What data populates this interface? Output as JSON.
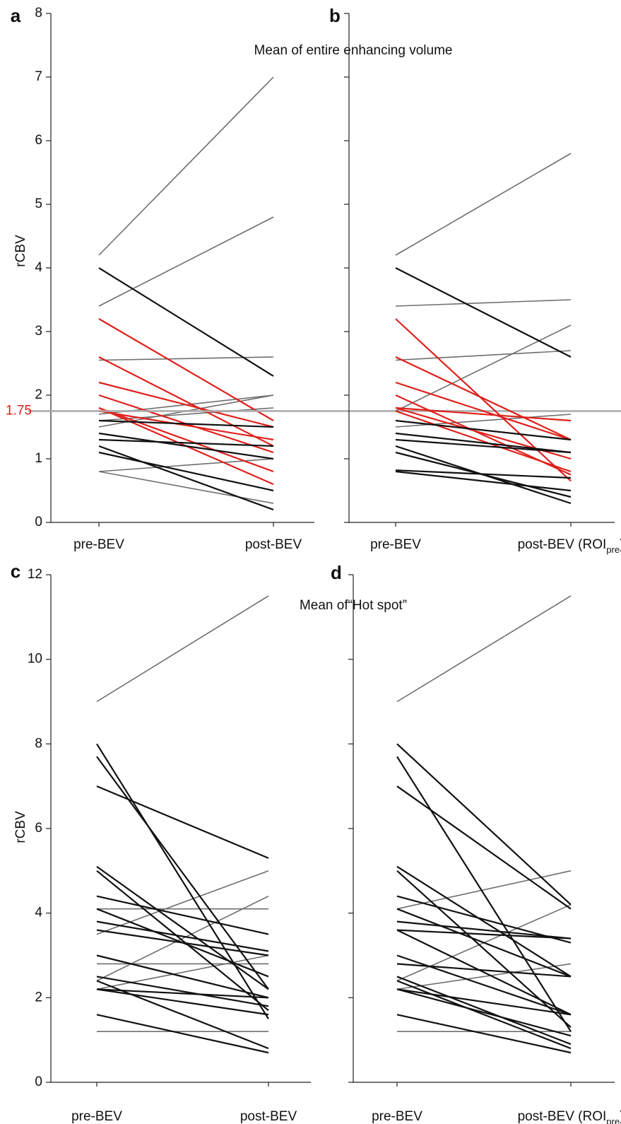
{
  "chart_data": [
    {
      "type": "slope",
      "panel": "a",
      "title": "Mean of entire enhancing volume",
      "ylabel": "rCBV",
      "categories": [
        "pre-BEV",
        "post-BEV"
      ],
      "ylim": [
        0,
        8
      ],
      "yticks": [
        0,
        1,
        2,
        3,
        4,
        5,
        6,
        7,
        8
      ],
      "tick_labels": true,
      "reference_line": {
        "value": 1.75,
        "label": "1.75",
        "color": "#e0201b"
      },
      "series": [
        {
          "color": "#6e6e6e",
          "values": [
            4.2,
            7.0
          ]
        },
        {
          "color": "#6e6e6e",
          "values": [
            3.4,
            4.8
          ]
        },
        {
          "color": "#6e6e6e",
          "values": [
            2.55,
            2.6
          ]
        },
        {
          "color": "#6e6e6e",
          "values": [
            1.7,
            2.0
          ]
        },
        {
          "color": "#6e6e6e",
          "values": [
            1.5,
            2.0
          ]
        },
        {
          "color": "#6e6e6e",
          "values": [
            1.6,
            1.8
          ]
        },
        {
          "color": "#6e6e6e",
          "values": [
            0.8,
            1.0
          ]
        },
        {
          "color": "#6e6e6e",
          "values": [
            0.8,
            0.3
          ]
        },
        {
          "color": "#111111",
          "values": [
            4.0,
            2.3
          ]
        },
        {
          "color": "#e0201b",
          "values": [
            3.2,
            1.6
          ]
        },
        {
          "color": "#e0201b",
          "values": [
            2.6,
            1.2
          ]
        },
        {
          "color": "#e0201b",
          "values": [
            2.2,
            1.5
          ]
        },
        {
          "color": "#e0201b",
          "values": [
            2.0,
            1.1
          ]
        },
        {
          "color": "#e0201b",
          "values": [
            1.8,
            0.8
          ]
        },
        {
          "color": "#e0201b",
          "values": [
            1.8,
            0.6
          ]
        },
        {
          "color": "#e0201b",
          "values": [
            1.75,
            1.3
          ]
        },
        {
          "color": "#111111",
          "values": [
            1.6,
            1.5
          ]
        },
        {
          "color": "#111111",
          "values": [
            1.4,
            1.0
          ]
        },
        {
          "color": "#111111",
          "values": [
            1.3,
            1.2
          ]
        },
        {
          "color": "#111111",
          "values": [
            1.2,
            0.2
          ]
        },
        {
          "color": "#111111",
          "values": [
            1.1,
            0.5
          ]
        }
      ]
    },
    {
      "type": "slope",
      "panel": "b",
      "categories": [
        "pre-BEV",
        [
          "post-BEV (ROI",
          "pre",
          ")"
        ]
      ],
      "ylim": [
        0,
        8
      ],
      "yticks": [
        0,
        1,
        2,
        3,
        4,
        5,
        6,
        7,
        8
      ],
      "tick_labels": false,
      "series": [
        {
          "color": "#6e6e6e",
          "values": [
            4.2,
            5.8
          ]
        },
        {
          "color": "#6e6e6e",
          "values": [
            3.4,
            3.5
          ]
        },
        {
          "color": "#6e6e6e",
          "values": [
            2.55,
            2.7
          ]
        },
        {
          "color": "#6e6e6e",
          "values": [
            1.75,
            3.1
          ]
        },
        {
          "color": "#6e6e6e",
          "values": [
            1.5,
            1.7
          ]
        },
        {
          "color": "#111111",
          "values": [
            4.0,
            2.6
          ]
        },
        {
          "color": "#e0201b",
          "values": [
            3.2,
            0.65
          ]
        },
        {
          "color": "#e0201b",
          "values": [
            2.6,
            1.3
          ]
        },
        {
          "color": "#e0201b",
          "values": [
            2.2,
            1.3
          ]
        },
        {
          "color": "#e0201b",
          "values": [
            2.0,
            0.75
          ]
        },
        {
          "color": "#e0201b",
          "values": [
            1.8,
            1.6
          ]
        },
        {
          "color": "#e0201b",
          "values": [
            1.8,
            1.0
          ]
        },
        {
          "color": "#e0201b",
          "values": [
            1.75,
            0.8
          ]
        },
        {
          "color": "#111111",
          "values": [
            1.6,
            1.3
          ]
        },
        {
          "color": "#111111",
          "values": [
            1.4,
            1.1
          ]
        },
        {
          "color": "#111111",
          "values": [
            1.3,
            1.1
          ]
        },
        {
          "color": "#111111",
          "values": [
            1.2,
            0.3
          ]
        },
        {
          "color": "#111111",
          "values": [
            1.1,
            0.4
          ]
        },
        {
          "color": "#111111",
          "values": [
            0.82,
            0.7
          ]
        },
        {
          "color": "#111111",
          "values": [
            0.8,
            0.5
          ]
        }
      ]
    },
    {
      "type": "slope",
      "panel": "c",
      "title": "Mean of“Hot spot”",
      "ylabel": "rCBV",
      "categories": [
        "pre-BEV",
        "post-BEV"
      ],
      "ylim": [
        0,
        12
      ],
      "yticks": [
        0,
        2,
        4,
        6,
        8,
        10,
        12
      ],
      "tick_labels": true,
      "series": [
        {
          "color": "#6e6e6e",
          "values": [
            9.0,
            11.5
          ]
        },
        {
          "color": "#6e6e6e",
          "values": [
            4.1,
            4.1
          ]
        },
        {
          "color": "#6e6e6e",
          "values": [
            3.5,
            5.0
          ]
        },
        {
          "color": "#6e6e6e",
          "values": [
            2.4,
            4.4
          ]
        },
        {
          "color": "#6e6e6e",
          "values": [
            2.8,
            2.8
          ]
        },
        {
          "color": "#6e6e6e",
          "values": [
            2.2,
            3.0
          ]
        },
        {
          "color": "#6e6e6e",
          "values": [
            1.2,
            1.2
          ]
        },
        {
          "color": "#111111",
          "values": [
            8.0,
            1.5
          ]
        },
        {
          "color": "#111111",
          "values": [
            7.7,
            2.2
          ]
        },
        {
          "color": "#111111",
          "values": [
            7.0,
            5.3
          ]
        },
        {
          "color": "#111111",
          "values": [
            5.1,
            2.2
          ]
        },
        {
          "color": "#111111",
          "values": [
            5.0,
            1.7
          ]
        },
        {
          "color": "#111111",
          "values": [
            4.4,
            3.5
          ]
        },
        {
          "color": "#111111",
          "values": [
            4.1,
            2.5
          ]
        },
        {
          "color": "#111111",
          "values": [
            3.8,
            3.1
          ]
        },
        {
          "color": "#111111",
          "values": [
            3.6,
            3.0
          ]
        },
        {
          "color": "#111111",
          "values": [
            3.0,
            2.0
          ]
        },
        {
          "color": "#111111",
          "values": [
            2.5,
            1.8
          ]
        },
        {
          "color": "#111111",
          "values": [
            2.4,
            0.8
          ]
        },
        {
          "color": "#111111",
          "values": [
            2.2,
            1.6
          ]
        },
        {
          "color": "#111111",
          "values": [
            2.2,
            2.0
          ]
        },
        {
          "color": "#111111",
          "values": [
            1.6,
            0.7
          ]
        }
      ]
    },
    {
      "type": "slope",
      "panel": "d",
      "categories": [
        "pre-BEV",
        [
          "post-BEV (ROI",
          "pre",
          ")"
        ]
      ],
      "ylim": [
        0,
        12
      ],
      "yticks": [
        0,
        2,
        4,
        6,
        8,
        10,
        12
      ],
      "tick_labels": false,
      "series": [
        {
          "color": "#6e6e6e",
          "values": [
            9.0,
            11.5
          ]
        },
        {
          "color": "#6e6e6e",
          "values": [
            4.1,
            5.0
          ]
        },
        {
          "color": "#6e6e6e",
          "values": [
            2.4,
            4.2
          ]
        },
        {
          "color": "#6e6e6e",
          "values": [
            2.2,
            2.8
          ]
        },
        {
          "color": "#6e6e6e",
          "values": [
            1.2,
            1.2
          ]
        },
        {
          "color": "#111111",
          "values": [
            8.0,
            4.2
          ]
        },
        {
          "color": "#111111",
          "values": [
            7.7,
            1.2
          ]
        },
        {
          "color": "#111111",
          "values": [
            7.0,
            4.1
          ]
        },
        {
          "color": "#111111",
          "values": [
            5.1,
            2.5
          ]
        },
        {
          "color": "#111111",
          "values": [
            5.0,
            1.3
          ]
        },
        {
          "color": "#111111",
          "values": [
            4.4,
            3.3
          ]
        },
        {
          "color": "#111111",
          "values": [
            4.1,
            2.5
          ]
        },
        {
          "color": "#111111",
          "values": [
            3.8,
            3.4
          ]
        },
        {
          "color": "#111111",
          "values": [
            3.6,
            3.4
          ]
        },
        {
          "color": "#111111",
          "values": [
            3.6,
            1.6
          ]
        },
        {
          "color": "#111111",
          "values": [
            3.0,
            1.6
          ]
        },
        {
          "color": "#111111",
          "values": [
            2.8,
            2.5
          ]
        },
        {
          "color": "#111111",
          "values": [
            2.5,
            0.9
          ]
        },
        {
          "color": "#111111",
          "values": [
            2.4,
            0.8
          ]
        },
        {
          "color": "#111111",
          "values": [
            2.2,
            1.6
          ]
        },
        {
          "color": "#111111",
          "values": [
            2.2,
            1.1
          ]
        },
        {
          "color": "#111111",
          "values": [
            1.6,
            0.7
          ]
        }
      ]
    }
  ]
}
